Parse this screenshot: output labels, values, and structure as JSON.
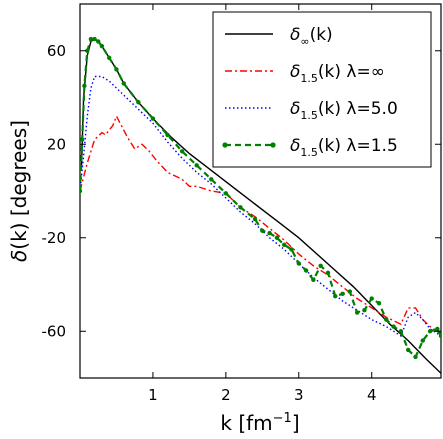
{
  "chart_data": {
    "type": "line",
    "xlabel": {
      "main": "k [fm",
      "sup": "−1",
      "close": "]"
    },
    "ylabel": {
      "sym": "δ",
      "main": "(k) [degrees]"
    },
    "xlim": [
      0,
      4.95
    ],
    "ylim": [
      -80,
      80
    ],
    "xticks": [
      "1",
      "2",
      "3",
      "4"
    ],
    "xtick_values": [
      1,
      2,
      3,
      4
    ],
    "yticks": [
      "60",
      "20",
      "-20",
      "-60"
    ],
    "ytick_values": [
      60,
      20,
      -20,
      -60
    ],
    "legend_position": "top-right",
    "series": [
      {
        "name": "δ∞(k)",
        "legend": {
          "sym": "δ",
          "sub": "∞",
          "rest": "(k)"
        },
        "color": "#000000",
        "style": "solid",
        "x": [
          0.02,
          0.05,
          0.1,
          0.15,
          0.2,
          0.25,
          0.3,
          0.4,
          0.5,
          0.6,
          0.8,
          1.0,
          1.25,
          1.5,
          1.75,
          2.0,
          2.25,
          2.5,
          2.75,
          3.0,
          3.25,
          3.5,
          3.75,
          4.0,
          4.25,
          4.5,
          4.75,
          4.95
        ],
        "y": [
          10,
          40,
          58,
          64,
          65,
          64,
          62,
          57,
          52,
          46,
          38,
          31,
          23,
          16,
          10,
          4,
          -2,
          -8,
          -14,
          -20,
          -27,
          -34,
          -41,
          -49,
          -57,
          -64,
          -72,
          -78
        ]
      },
      {
        "name": "δ1.5(k) λ=∞",
        "legend": {
          "sym": "δ",
          "sub": "1.5",
          "rest": "(k) λ=∞"
        },
        "color": "#ff0000",
        "style": "dashdot",
        "x": [
          0,
          0.05,
          0.1,
          0.2,
          0.3,
          0.35,
          0.45,
          0.5,
          0.55,
          0.65,
          0.75,
          0.85,
          0.95,
          1.05,
          1.2,
          1.4,
          1.5,
          1.6,
          1.8,
          2.0,
          2.2,
          2.4,
          2.6,
          2.8,
          3.0,
          3.2,
          3.4,
          3.6,
          3.8,
          4.0,
          4.2,
          4.4,
          4.5,
          4.6,
          4.7,
          4.8,
          4.9,
          4.95
        ],
        "y": [
          0,
          6,
          12,
          22,
          25,
          24,
          28,
          32,
          29,
          23,
          18,
          20,
          17,
          13,
          8,
          5,
          2,
          2,
          0,
          -1,
          -7,
          -11,
          -16,
          -21,
          -27,
          -32,
          -36,
          -41,
          -46,
          -50,
          -54,
          -57,
          -50,
          -50,
          -55,
          -58,
          -60,
          -62
        ]
      },
      {
        "name": "δ1.5(k) λ=5.0",
        "legend": {
          "sym": "δ",
          "sub": "1.5",
          "rest": "(k) λ=5.0"
        },
        "color": "#0000ff",
        "style": "dotted",
        "x": [
          0,
          0.05,
          0.1,
          0.15,
          0.2,
          0.3,
          0.4,
          0.5,
          0.6,
          0.7,
          0.8,
          1.0,
          1.2,
          1.4,
          1.6,
          1.8,
          2.0,
          2.2,
          2.4,
          2.6,
          2.8,
          3.0,
          3.2,
          3.4,
          3.6,
          3.8,
          4.0,
          4.2,
          4.4,
          4.5,
          4.6,
          4.7,
          4.8,
          4.9,
          4.95
        ],
        "y": [
          0,
          15,
          32,
          44,
          49,
          49,
          47,
          44,
          41,
          38,
          35,
          29,
          21,
          14,
          8,
          3,
          -3,
          -9,
          -14,
          -20,
          -25,
          -31,
          -37,
          -42,
          -47,
          -51,
          -55,
          -58,
          -62,
          -54,
          -52,
          -55,
          -59,
          -61,
          -62
        ]
      },
      {
        "name": "δ1.5(k) λ=1.5",
        "legend": {
          "sym": "δ",
          "sub": "1.5",
          "rest": "(k) λ=1.5"
        },
        "color": "#008000",
        "style": "dashed-markers",
        "x": [
          0,
          0.03,
          0.06,
          0.1,
          0.15,
          0.2,
          0.25,
          0.3,
          0.4,
          0.5,
          0.6,
          0.8,
          1.0,
          1.2,
          1.4,
          1.6,
          1.8,
          2.0,
          2.2,
          2.4,
          2.5,
          2.6,
          2.7,
          2.8,
          2.9,
          3.0,
          3.1,
          3.2,
          3.3,
          3.4,
          3.5,
          3.6,
          3.7,
          3.8,
          3.9,
          4.0,
          4.1,
          4.2,
          4.3,
          4.4,
          4.5,
          4.6,
          4.7,
          4.8,
          4.9,
          4.95
        ],
        "y": [
          0,
          22,
          45,
          60,
          65,
          65,
          64,
          62,
          57,
          52,
          46,
          38,
          31,
          24,
          17,
          11,
          5,
          -1,
          -7,
          -12,
          -17,
          -18,
          -20,
          -23,
          -25,
          -31,
          -34,
          -38,
          -32,
          -35,
          -45,
          -44,
          -43,
          -52,
          -51,
          -46,
          -48,
          -55,
          -58,
          -60,
          -68,
          -71,
          -64,
          -60,
          -59,
          -62
        ]
      }
    ]
  }
}
